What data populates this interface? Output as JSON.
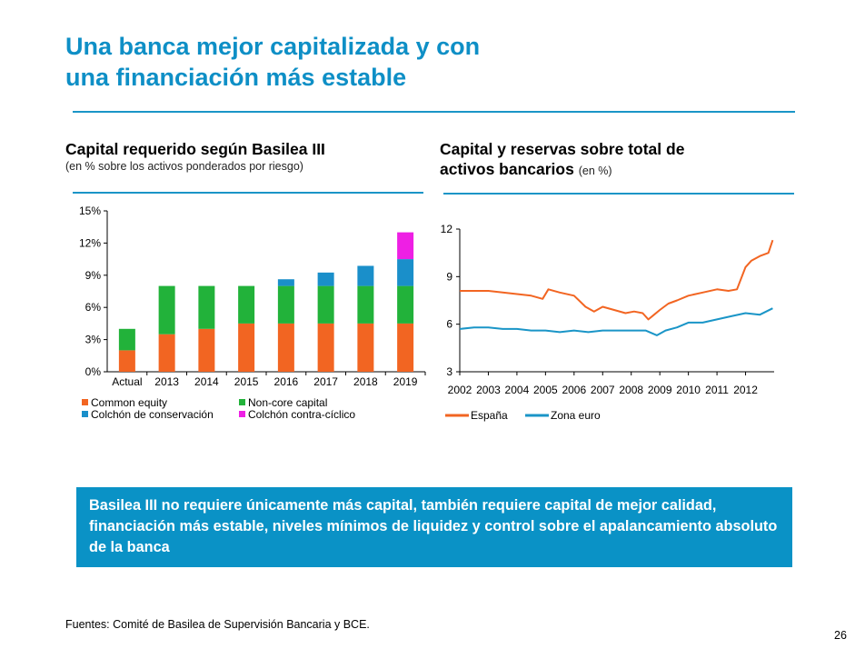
{
  "slide": {
    "title_lines": [
      "Una banca mejor capitalizada y con",
      "una financiación más estable"
    ],
    "summary": "Basilea III no requiere únicamente más capital, también requiere capital de mejor calidad, financiación más estable, niveles mínimos de liquidez y control sobre el apalancamiento absoluto de la banca",
    "sources": "Fuentes: Comité de Basilea de Supervisión Bancaria y BCE.",
    "page_number": "26",
    "accent_color": "#0e8fc6",
    "box_color": "#0a92c6"
  },
  "left_chart": {
    "title": "Capital requerido según Basilea III",
    "subtitle": "(en % sobre los activos ponderados por riesgo)"
  },
  "right_chart": {
    "title_line1": "Capital y reservas sobre total de",
    "title_line2": "activos bancarios",
    "title_unit": "(en %)"
  },
  "chart_data": [
    {
      "type": "bar",
      "stacked": true,
      "categories": [
        "Actual",
        "2013",
        "2014",
        "2015",
        "2016",
        "2017",
        "2018",
        "2019"
      ],
      "series": [
        {
          "name": "Common equity",
          "color": "#f26522",
          "values": [
            2,
            3.5,
            4,
            4.5,
            4.5,
            4.5,
            4.5,
            4.5
          ]
        },
        {
          "name": "Non-core capital",
          "color": "#22b23a",
          "values": [
            2,
            4.5,
            4,
            3.5,
            3.5,
            3.5,
            3.5,
            3.5
          ]
        },
        {
          "name": "Colchón de conservación",
          "color": "#1a8fca",
          "values": [
            0,
            0,
            0,
            0,
            0.625,
            1.25,
            1.875,
            2.5
          ]
        },
        {
          "name": "Colchón contra-cíclico",
          "color": "#ee1fe4",
          "values": [
            0,
            0,
            0,
            0,
            0,
            0,
            0,
            2.5
          ]
        }
      ],
      "yticks": [
        "0%",
        "3%",
        "6%",
        "9%",
        "12%",
        "15%"
      ],
      "ylim": [
        0,
        15
      ],
      "legend_position": "bottom"
    },
    {
      "type": "line",
      "xlim": [
        2002,
        2013
      ],
      "xticks": [
        "2002",
        "2003",
        "2004",
        "2005",
        "2006",
        "2007",
        "2008",
        "2009",
        "2010",
        "2011",
        "2012"
      ],
      "yticks": [
        "3",
        "6",
        "9",
        "12"
      ],
      "ylim": [
        3,
        12
      ],
      "legend_position": "bottom",
      "series": [
        {
          "name": "España",
          "color": "#f26522",
          "x": [
            2002,
            2002.5,
            2003,
            2003.5,
            2004,
            2004.5,
            2004.9,
            2005.1,
            2005.5,
            2006,
            2006.4,
            2006.7,
            2007,
            2007.4,
            2007.8,
            2008.1,
            2008.4,
            2008.6,
            2008.8,
            2009,
            2009.3,
            2009.6,
            2010,
            2010.5,
            2011,
            2011.4,
            2011.7,
            2012,
            2012.2,
            2012.5,
            2012.8,
            2012.95
          ],
          "y": [
            8.1,
            8.1,
            8.1,
            8.0,
            7.9,
            7.8,
            7.6,
            8.2,
            8.0,
            7.8,
            7.1,
            6.8,
            7.1,
            6.9,
            6.7,
            6.8,
            6.7,
            6.3,
            6.6,
            6.9,
            7.3,
            7.5,
            7.8,
            8.0,
            8.2,
            8.1,
            8.2,
            9.6,
            10.0,
            10.3,
            10.5,
            11.3
          ]
        },
        {
          "name": "Zona euro",
          "color": "#1a95c7",
          "x": [
            2002,
            2002.5,
            2003,
            2003.5,
            2004,
            2004.5,
            2005,
            2005.5,
            2006,
            2006.5,
            2007,
            2007.5,
            2008,
            2008.5,
            2008.9,
            2009.2,
            2009.6,
            2010,
            2010.5,
            2011,
            2011.5,
            2012,
            2012.5,
            2012.95
          ],
          "y": [
            5.7,
            5.8,
            5.8,
            5.7,
            5.7,
            5.6,
            5.6,
            5.5,
            5.6,
            5.5,
            5.6,
            5.6,
            5.6,
            5.6,
            5.3,
            5.6,
            5.8,
            6.1,
            6.1,
            6.3,
            6.5,
            6.7,
            6.6,
            7.0
          ]
        }
      ]
    }
  ]
}
